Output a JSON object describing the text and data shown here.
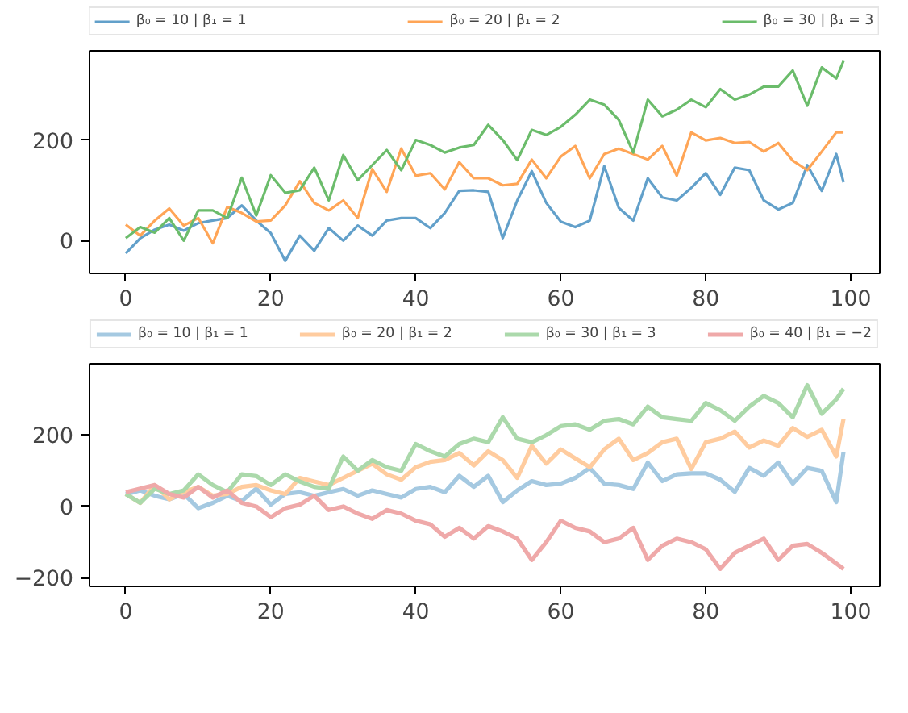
{
  "chart_data": [
    {
      "type": "line",
      "x": [
        0,
        2,
        4,
        6,
        8,
        10,
        12,
        14,
        16,
        18,
        20,
        22,
        24,
        26,
        28,
        30,
        32,
        34,
        36,
        38,
        40,
        42,
        44,
        46,
        48,
        50,
        52,
        54,
        56,
        58,
        60,
        62,
        64,
        66,
        68,
        70,
        72,
        74,
        76,
        78,
        80,
        82,
        84,
        86,
        88,
        90,
        92,
        94,
        96,
        98,
        99
      ],
      "xlim": [
        -5,
        104
      ],
      "ylim": [
        -65,
        377
      ],
      "xticks": [
        0,
        20,
        40,
        60,
        80,
        100
      ],
      "yticks": [
        0,
        200
      ],
      "legend": "top",
      "grid": false,
      "series": [
        {
          "name": "β₀ = 10 | β₁ = 1",
          "color": "#62a0ca",
          "values": [
            -25,
            5,
            22,
            32,
            20,
            35,
            40,
            45,
            70,
            40,
            15,
            -40,
            10,
            -20,
            25,
            0,
            30,
            10,
            40,
            45,
            45,
            25,
            55,
            99,
            100,
            97,
            5,
            80,
            138,
            75,
            38,
            27,
            40,
            148,
            65,
            40,
            124,
            86,
            80,
            105,
            134,
            91,
            145,
            140,
            80,
            62,
            75,
            150,
            99,
            172,
            116
          ]
        },
        {
          "name": "β₀ = 20 | β₁ = 2",
          "color": "#ffa556",
          "values": [
            32,
            10,
            40,
            64,
            30,
            45,
            -5,
            67,
            55,
            38,
            40,
            70,
            118,
            75,
            60,
            80,
            45,
            142,
            97,
            183,
            129,
            134,
            102,
            156,
            124,
            124,
            110,
            113,
            161,
            124,
            167,
            188,
            124,
            172,
            183,
            172,
            161,
            188,
            129,
            215,
            199,
            204,
            194,
            196,
            177,
            194,
            159,
            140,
            177,
            215,
            215
          ]
        },
        {
          "name": "β₀ = 30 | β₁ = 3",
          "color": "#6bbc6b",
          "values": [
            5,
            27,
            16,
            45,
            0,
            60,
            60,
            45,
            125,
            50,
            130,
            95,
            100,
            145,
            80,
            170,
            120,
            150,
            180,
            140,
            200,
            190,
            175,
            185,
            190,
            230,
            200,
            160,
            220,
            210,
            226,
            250,
            280,
            270,
            240,
            175,
            280,
            247,
            260,
            280,
            265,
            301,
            280,
            290,
            306,
            306,
            338,
            268,
            344,
            322,
            357
          ]
        }
      ]
    },
    {
      "type": "line",
      "x": [
        0,
        2,
        4,
        6,
        8,
        10,
        12,
        14,
        16,
        18,
        20,
        22,
        24,
        26,
        28,
        30,
        32,
        34,
        36,
        38,
        40,
        42,
        44,
        46,
        48,
        50,
        52,
        54,
        56,
        58,
        60,
        62,
        64,
        66,
        68,
        70,
        72,
        74,
        76,
        78,
        80,
        82,
        84,
        86,
        88,
        90,
        92,
        94,
        96,
        98,
        99
      ],
      "xlim": [
        -5,
        104
      ],
      "ylim": [
        -224,
        400
      ],
      "xticks": [
        0,
        20,
        40,
        60,
        80,
        100
      ],
      "yticks": [
        -200,
        0,
        200
      ],
      "legend": "top",
      "grid": false,
      "series": [
        {
          "name": "β₀ = 10 | β₁ = 1",
          "color": "#a5c9e1",
          "values": [
            34,
            45,
            30,
            20,
            35,
            -5,
            10,
            30,
            15,
            50,
            5,
            35,
            40,
            30,
            40,
            49,
            30,
            45,
            35,
            25,
            49,
            55,
            40,
            86,
            55,
            86,
            12,
            45,
            71,
            60,
            64,
            80,
            108,
            64,
            60,
            49,
            123,
            71,
            90,
            93,
            93,
            75,
            41,
            108,
            86,
            123,
            64,
            108,
            100,
            12,
            153
          ]
        },
        {
          "name": "β₀ = 20 | β₁ = 2",
          "color": "#ffcc9f",
          "values": [
            35,
            10,
            60,
            20,
            40,
            55,
            30,
            35,
            55,
            60,
            45,
            35,
            80,
            70,
            60,
            80,
            100,
            120,
            90,
            75,
            110,
            125,
            130,
            150,
            115,
            155,
            130,
            80,
            170,
            120,
            160,
            135,
            110,
            160,
            190,
            130,
            150,
            180,
            190,
            105,
            180,
            190,
            210,
            165,
            185,
            170,
            220,
            195,
            215,
            140,
            245
          ]
        },
        {
          "name": "β₀ = 30 | β₁ = 3",
          "color": "#abd9ab",
          "values": [
            35,
            10,
            50,
            35,
            45,
            90,
            60,
            40,
            90,
            85,
            60,
            90,
            70,
            55,
            50,
            140,
            100,
            130,
            110,
            100,
            175,
            155,
            140,
            175,
            190,
            180,
            250,
            190,
            180,
            200,
            225,
            230,
            215,
            240,
            245,
            230,
            280,
            250,
            245,
            240,
            290,
            270,
            240,
            280,
            310,
            290,
            250,
            340,
            260,
            300,
            330
          ]
        },
        {
          "name": "β₀ = 40 | β₁ = −2",
          "color": "#efa9a9",
          "values": [
            40,
            50,
            60,
            35,
            25,
            55,
            25,
            45,
            10,
            0,
            -30,
            -5,
            5,
            30,
            -10,
            0,
            -20,
            -35,
            -10,
            -20,
            -40,
            -50,
            -85,
            -60,
            -90,
            -55,
            -70,
            -90,
            -150,
            -100,
            -40,
            -60,
            -70,
            -100,
            -90,
            -60,
            -150,
            -110,
            -90,
            -100,
            -120,
            -175,
            -130,
            -110,
            -90,
            -150,
            -110,
            -105,
            -130,
            -160,
            -175
          ]
        }
      ]
    }
  ]
}
